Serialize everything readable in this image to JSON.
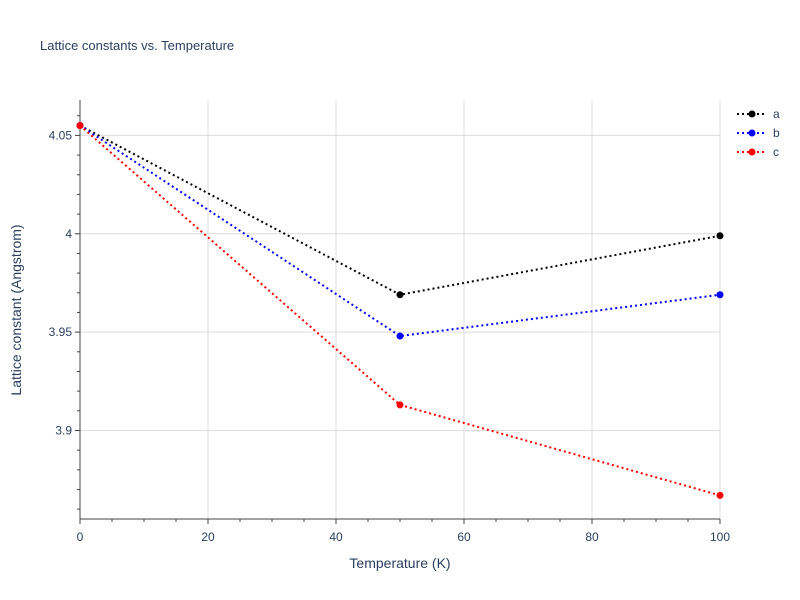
{
  "chart_data": {
    "type": "line",
    "title": "Lattice constants vs. Temperature",
    "xlabel": "Temperature (K)",
    "ylabel": "Lattice constant (Angstrom)",
    "xlim": [
      0,
      100
    ],
    "ylim": [
      3.855,
      4.068
    ],
    "xticks": [
      0,
      20,
      40,
      60,
      80,
      100
    ],
    "xtick_labels": [
      "0",
      "20",
      "40",
      "60",
      "80",
      "100"
    ],
    "yticks": [
      3.9,
      3.95,
      4.0,
      4.05
    ],
    "ytick_labels": [
      "3.9",
      "3.95",
      "4",
      "4.05"
    ],
    "grid": true,
    "legend_position": "top-right",
    "x": [
      0,
      50,
      100
    ],
    "series": [
      {
        "name": "a",
        "color": "#000000",
        "values": [
          4.055,
          3.969,
          3.999
        ]
      },
      {
        "name": "b",
        "color": "#0000ff",
        "values": [
          4.055,
          3.948,
          3.969
        ]
      },
      {
        "name": "c",
        "color": "#ff0000",
        "values": [
          4.055,
          3.913,
          3.867
        ]
      }
    ]
  }
}
